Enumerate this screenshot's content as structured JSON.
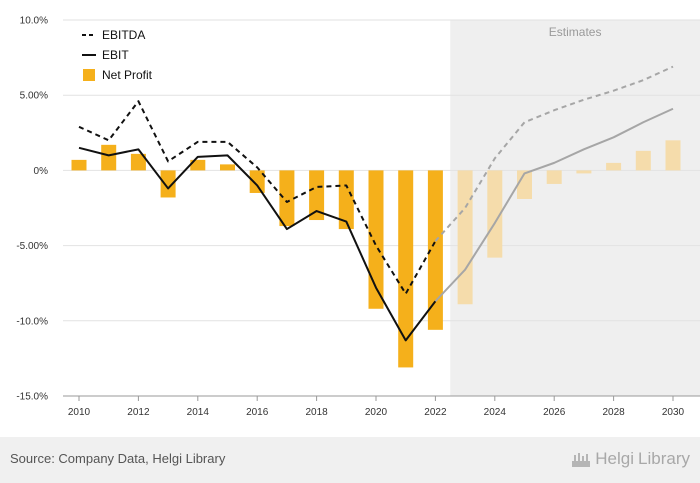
{
  "chart_data": {
    "type": "bar+line",
    "title": "",
    "xlabel": "",
    "ylabel": "",
    "ylim": [
      -15,
      10
    ],
    "y_ticks": [
      "10.0%",
      "5.00%",
      "0%",
      "-5.00%",
      "-10.0%",
      "-15.0%"
    ],
    "y_tick_values": [
      10,
      5,
      0,
      -5,
      -10,
      -15
    ],
    "x_tick_labels": [
      "2010",
      "2012",
      "2014",
      "2016",
      "2018",
      "2020",
      "2022",
      "2024",
      "2026",
      "2028",
      "2030"
    ],
    "years": [
      2010,
      2011,
      2012,
      2013,
      2014,
      2015,
      2016,
      2017,
      2018,
      2019,
      2020,
      2021,
      2022,
      2023,
      2024,
      2025,
      2026,
      2027,
      2028,
      2029,
      2030
    ],
    "estimate_start_year": 2023,
    "estimates_label": "Estimates",
    "legend_position": "top-left",
    "series": [
      {
        "name": "EBITDA",
        "kind": "line",
        "style": "dashed",
        "values": [
          2.9,
          2.0,
          4.6,
          0.6,
          1.9,
          1.9,
          0.2,
          -2.1,
          -1.1,
          -1.0,
          -5.0,
          -8.2,
          -4.7,
          -2.5,
          0.8,
          3.2,
          4.0,
          4.7,
          5.3,
          6.0,
          6.9
        ]
      },
      {
        "name": "EBIT",
        "kind": "line",
        "style": "solid",
        "values": [
          1.5,
          1.0,
          1.4,
          -1.2,
          0.9,
          1.0,
          -1.0,
          -3.9,
          -2.7,
          -3.4,
          -7.8,
          -11.3,
          -8.7,
          -6.6,
          -3.5,
          -0.2,
          0.5,
          1.4,
          2.2,
          3.2,
          4.1
        ]
      },
      {
        "name": "Net Profit",
        "kind": "bar",
        "values": [
          0.7,
          1.7,
          1.1,
          -1.8,
          0.7,
          0.4,
          -1.5,
          -3.7,
          -3.3,
          -3.9,
          -9.2,
          -13.1,
          -10.6,
          -8.9,
          -5.8,
          -1.9,
          -0.9,
          -0.2,
          0.5,
          1.3,
          2.0
        ]
      }
    ]
  },
  "colors": {
    "bar": "#f5b01b",
    "bar_estimate": "#f5dcab",
    "line": "#111111",
    "line_estimate": "#a6a6a6",
    "estimate_band": "#efefef",
    "grid": "#e2e2e2"
  },
  "footer": {
    "source": "Source: Company Data, Helgi Library",
    "logo_text_1": "Helgi",
    "logo_text_2": "Library",
    "logo_icon": "helgi-library-logo-icon"
  }
}
